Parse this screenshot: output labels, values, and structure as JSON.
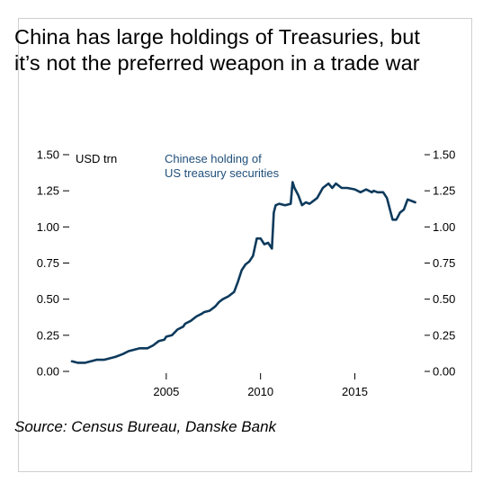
{
  "title": "China has large holdings of Treasuries, but it’s not the preferred weapon in a trade war",
  "source": "Source: Census Bureau, Danske Bank",
  "colors": {
    "line": "#0d3a5c",
    "text": "#000000",
    "annotation": "#1f4e79",
    "border": "#cfcfcf"
  },
  "chart_data": {
    "type": "line",
    "title": "China has large holdings of Treasuries, but it’s not the preferred weapon in a trade war",
    "unit_label": "USD trn",
    "annotation": [
      "Chinese holding of",
      "US treasury securities"
    ],
    "xlim": [
      2000.0,
      2018.6
    ],
    "ylim": [
      0.0,
      1.5
    ],
    "x_ticks": [
      2005,
      2010,
      2015
    ],
    "y_ticks": [
      "0.00",
      "0.25",
      "0.50",
      "0.75",
      "1.00",
      "1.25",
      "1.50"
    ],
    "grid": false,
    "series": [
      {
        "name": "Chinese holding of US treasury securities",
        "x": [
          2000.0,
          2000.3,
          2000.7,
          2001.0,
          2001.3,
          2001.7,
          2002.0,
          2002.3,
          2002.7,
          2003.0,
          2003.3,
          2003.6,
          2004.0,
          2004.3,
          2004.6,
          2004.9,
          2005.0,
          2005.3,
          2005.6,
          2005.9,
          2006.0,
          2006.3,
          2006.6,
          2006.9,
          2007.0,
          2007.3,
          2007.5,
          2007.6,
          2007.8,
          2008.0,
          2008.3,
          2008.6,
          2008.8,
          2009.0,
          2009.2,
          2009.4,
          2009.5,
          2009.6,
          2009.8,
          2010.0,
          2010.2,
          2010.4,
          2010.6,
          2010.7,
          2010.8,
          2011.0,
          2011.3,
          2011.6,
          2011.7,
          2011.8,
          2012.0,
          2012.2,
          2012.4,
          2012.6,
          2013.0,
          2013.3,
          2013.6,
          2013.8,
          2014.0,
          2014.3,
          2014.6,
          2015.0,
          2015.3,
          2015.6,
          2015.9,
          2016.0,
          2016.2,
          2016.5,
          2016.7,
          2016.9,
          2017.0,
          2017.2,
          2017.4,
          2017.6,
          2017.8,
          2018.0,
          2018.2
        ],
        "values": [
          0.07,
          0.06,
          0.06,
          0.07,
          0.08,
          0.08,
          0.09,
          0.1,
          0.12,
          0.14,
          0.15,
          0.16,
          0.16,
          0.18,
          0.21,
          0.22,
          0.24,
          0.25,
          0.29,
          0.31,
          0.33,
          0.35,
          0.38,
          0.4,
          0.41,
          0.42,
          0.44,
          0.45,
          0.48,
          0.5,
          0.52,
          0.55,
          0.62,
          0.7,
          0.74,
          0.76,
          0.78,
          0.8,
          0.92,
          0.92,
          0.88,
          0.89,
          0.85,
          1.1,
          1.15,
          1.16,
          1.15,
          1.16,
          1.31,
          1.27,
          1.22,
          1.15,
          1.17,
          1.16,
          1.2,
          1.27,
          1.3,
          1.27,
          1.3,
          1.27,
          1.27,
          1.26,
          1.24,
          1.26,
          1.24,
          1.25,
          1.24,
          1.24,
          1.2,
          1.1,
          1.05,
          1.05,
          1.1,
          1.12,
          1.19,
          1.18,
          1.17
        ]
      }
    ]
  }
}
